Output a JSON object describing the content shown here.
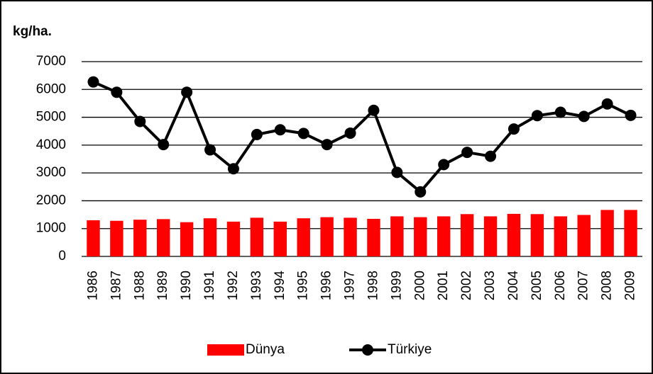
{
  "chart_data": {
    "type": "combo",
    "y_label": "kg/ha.",
    "categories": [
      "1986",
      "1987",
      "1988",
      "1989",
      "1990",
      "1991",
      "1992",
      "1993",
      "1994",
      "1995",
      "1996",
      "1997",
      "1998",
      "1999",
      "2000",
      "2001",
      "2002",
      "2003",
      "2004",
      "2005",
      "2006",
      "2007",
      "2008",
      "2009"
    ],
    "series": [
      {
        "name": "Dünya",
        "type": "bar",
        "color": "#ff0000",
        "values": [
          1300,
          1280,
          1320,
          1340,
          1230,
          1370,
          1250,
          1390,
          1250,
          1370,
          1410,
          1390,
          1350,
          1440,
          1410,
          1440,
          1520,
          1440,
          1530,
          1520,
          1440,
          1490,
          1670,
          1670
        ]
      },
      {
        "name": "Türkiye",
        "type": "line",
        "color": "#000000",
        "values": [
          6270,
          5900,
          4850,
          4020,
          5900,
          3830,
          3150,
          4380,
          4550,
          4420,
          4020,
          4430,
          5250,
          3020,
          2320,
          3300,
          3740,
          3600,
          4580,
          5060,
          5180,
          5030,
          5480,
          5070
        ]
      }
    ],
    "ylim": [
      0,
      7000
    ],
    "yticks": [
      0,
      1000,
      2000,
      3000,
      4000,
      5000,
      6000,
      7000
    ],
    "grid": true,
    "legend": "bottom"
  }
}
